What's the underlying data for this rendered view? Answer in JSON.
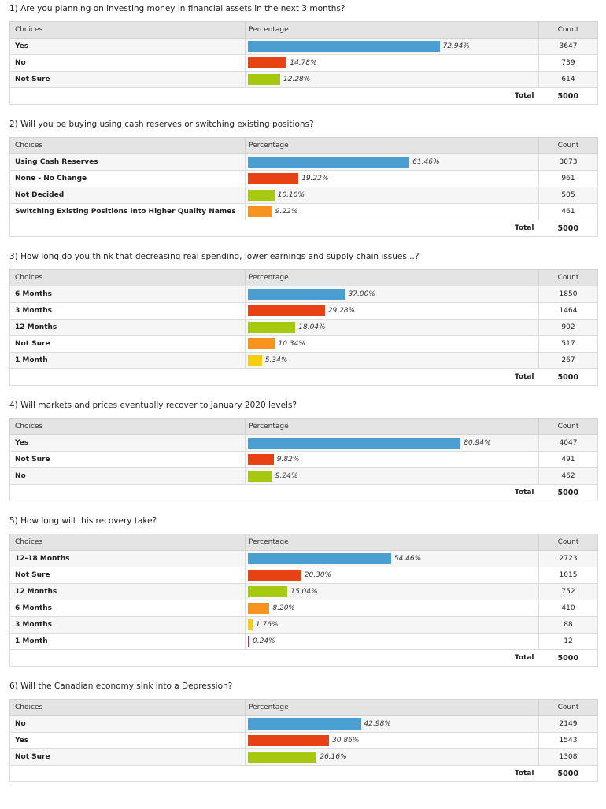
{
  "headers": {
    "choices": "Choices",
    "percentage": "Percentage",
    "count": "Count"
  },
  "total_label": "Total",
  "colors": {
    "blue": "#4a9fd0",
    "red": "#e84214",
    "green": "#a6c90f",
    "orange": "#f7941d",
    "yellow": "#f7cd10",
    "pink": "#e0185c"
  },
  "questions": [
    {
      "title": "1) Are you planning on investing money in financial assets in the next 3 months?",
      "total": "5000",
      "rows": [
        {
          "choice": "Yes",
          "pct": 72.94,
          "pct_label": "72.94%",
          "count": "3647",
          "color": "#4a9fd0"
        },
        {
          "choice": "No",
          "pct": 14.78,
          "pct_label": "14.78%",
          "count": "739",
          "color": "#e84214"
        },
        {
          "choice": "Not Sure",
          "pct": 12.28,
          "pct_label": "12.28%",
          "count": "614",
          "color": "#a6c90f"
        }
      ]
    },
    {
      "title": "2) Will you be buying using cash reserves or switching existing positions?",
      "total": "5000",
      "rows": [
        {
          "choice": "Using Cash Reserves",
          "pct": 61.46,
          "pct_label": "61.46%",
          "count": "3073",
          "color": "#4a9fd0"
        },
        {
          "choice": "None - No Change",
          "pct": 19.22,
          "pct_label": "19.22%",
          "count": "961",
          "color": "#e84214"
        },
        {
          "choice": "Not Decided",
          "pct": 10.1,
          "pct_label": "10.10%",
          "count": "505",
          "color": "#a6c90f"
        },
        {
          "choice": "Switching Existing Positions into Higher Quality Names",
          "pct": 9.22,
          "pct_label": "9.22%",
          "count": "461",
          "color": "#f7941d"
        }
      ]
    },
    {
      "title": "3) How long do you think that decreasing real spending, lower earnings and supply chain issues...?",
      "total": "5000",
      "rows": [
        {
          "choice": "6 Months",
          "pct": 37.0,
          "pct_label": "37.00%",
          "count": "1850",
          "color": "#4a9fd0"
        },
        {
          "choice": "3 Months",
          "pct": 29.28,
          "pct_label": "29.28%",
          "count": "1464",
          "color": "#e84214"
        },
        {
          "choice": "12 Months",
          "pct": 18.04,
          "pct_label": "18.04%",
          "count": "902",
          "color": "#a6c90f"
        },
        {
          "choice": "Not Sure",
          "pct": 10.34,
          "pct_label": "10.34%",
          "count": "517",
          "color": "#f7941d"
        },
        {
          "choice": "1 Month",
          "pct": 5.34,
          "pct_label": "5.34%",
          "count": "267",
          "color": "#f7cd10"
        }
      ]
    },
    {
      "title": "4) Will markets and prices eventually recover to January 2020 levels?",
      "total": "5000",
      "rows": [
        {
          "choice": "Yes",
          "pct": 80.94,
          "pct_label": "80.94%",
          "count": "4047",
          "color": "#4a9fd0"
        },
        {
          "choice": "Not Sure",
          "pct": 9.82,
          "pct_label": "9.82%",
          "count": "491",
          "color": "#e84214"
        },
        {
          "choice": "No",
          "pct": 9.24,
          "pct_label": "9.24%",
          "count": "462",
          "color": "#a6c90f"
        }
      ]
    },
    {
      "title": "5) How long will this recovery take?",
      "total": "5000",
      "rows": [
        {
          "choice": "12-18 Months",
          "pct": 54.46,
          "pct_label": "54.46%",
          "count": "2723",
          "color": "#4a9fd0"
        },
        {
          "choice": "Not Sure",
          "pct": 20.3,
          "pct_label": "20.30%",
          "count": "1015",
          "color": "#e84214"
        },
        {
          "choice": "12 Months",
          "pct": 15.04,
          "pct_label": "15.04%",
          "count": "752",
          "color": "#a6c90f"
        },
        {
          "choice": "6 Months",
          "pct": 8.2,
          "pct_label": "8.20%",
          "count": "410",
          "color": "#f7941d"
        },
        {
          "choice": "3 Months",
          "pct": 1.76,
          "pct_label": "1.76%",
          "count": "88",
          "color": "#f7cd10"
        },
        {
          "choice": "1 Month",
          "pct": 0.24,
          "pct_label": "0.24%",
          "count": "12",
          "color": "#e0185c"
        }
      ]
    },
    {
      "title": "6) Will the Canadian economy sink into a Depression?",
      "total": "5000",
      "rows": [
        {
          "choice": "No",
          "pct": 42.98,
          "pct_label": "42.98%",
          "count": "2149",
          "color": "#4a9fd0"
        },
        {
          "choice": "Yes",
          "pct": 30.86,
          "pct_label": "30.86%",
          "count": "1543",
          "color": "#e84214"
        },
        {
          "choice": "Not Sure",
          "pct": 26.16,
          "pct_label": "26.16%",
          "count": "1308",
          "color": "#a6c90f"
        }
      ]
    }
  ],
  "chart_data": [
    {
      "type": "bar",
      "title": "1) Are you planning on investing money in financial assets in the next 3 months?",
      "categories": [
        "Yes",
        "No",
        "Not Sure"
      ],
      "values": [
        72.94,
        14.78,
        12.28
      ],
      "counts": [
        3647,
        739,
        614
      ],
      "total": 5000
    },
    {
      "type": "bar",
      "title": "2) Will you be buying using cash reserves or switching existing positions?",
      "categories": [
        "Using Cash Reserves",
        "None - No Change",
        "Not Decided",
        "Switching Existing Positions into Higher Quality Names"
      ],
      "values": [
        61.46,
        19.22,
        10.1,
        9.22
      ],
      "counts": [
        3073,
        961,
        505,
        461
      ],
      "total": 5000
    },
    {
      "type": "bar",
      "title": "3) How long do you think that decreasing real spending, lower earnings and supply chain issues...?",
      "categories": [
        "6 Months",
        "3 Months",
        "12 Months",
        "Not Sure",
        "1 Month"
      ],
      "values": [
        37.0,
        29.28,
        18.04,
        10.34,
        5.34
      ],
      "counts": [
        1850,
        1464,
        902,
        517,
        267
      ],
      "total": 5000
    },
    {
      "type": "bar",
      "title": "4) Will markets and prices eventually recover to January 2020 levels?",
      "categories": [
        "Yes",
        "Not Sure",
        "No"
      ],
      "values": [
        80.94,
        9.82,
        9.24
      ],
      "counts": [
        4047,
        491,
        462
      ],
      "total": 5000
    },
    {
      "type": "bar",
      "title": "5) How long will this recovery take?",
      "categories": [
        "12-18 Months",
        "Not Sure",
        "12 Months",
        "6 Months",
        "3 Months",
        "1 Month"
      ],
      "values": [
        54.46,
        20.3,
        15.04,
        8.2,
        1.76,
        0.24
      ],
      "counts": [
        2723,
        1015,
        752,
        410,
        88,
        12
      ],
      "total": 5000
    },
    {
      "type": "bar",
      "title": "6) Will the Canadian economy sink into a Depression?",
      "categories": [
        "No",
        "Yes",
        "Not Sure"
      ],
      "values": [
        42.98,
        30.86,
        26.16
      ],
      "counts": [
        2149,
        1543,
        1308
      ],
      "total": 5000
    }
  ]
}
